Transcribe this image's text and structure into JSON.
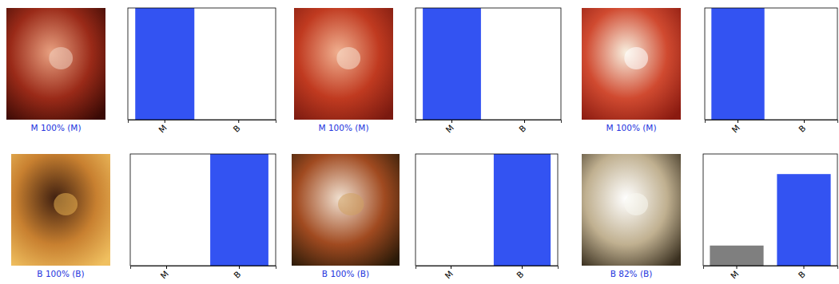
{
  "chart_data": [
    {
      "type": "bar",
      "title": "M 100% (M)",
      "categories": [
        "M",
        "B"
      ],
      "values": [
        100,
        0
      ],
      "colors": [
        "#3353f2",
        "#7f7f7f"
      ],
      "ylim": [
        0,
        100
      ],
      "tick_labels": "x"
    },
    {
      "type": "bar",
      "title": "M 100% (M)",
      "categories": [
        "M",
        "B"
      ],
      "values": [
        100,
        0
      ],
      "colors": [
        "#3353f2",
        "#7f7f7f"
      ],
      "ylim": [
        0,
        100
      ],
      "tick_labels": "x"
    },
    {
      "type": "bar",
      "title": "M 100% (M)",
      "categories": [
        "M",
        "B"
      ],
      "values": [
        100,
        0
      ],
      "colors": [
        "#3353f2",
        "#7f7f7f"
      ],
      "ylim": [
        0,
        100
      ],
      "tick_labels": "x"
    },
    {
      "type": "bar",
      "title": "B 100% (B)",
      "categories": [
        "M",
        "B"
      ],
      "values": [
        0,
        100
      ],
      "colors": [
        "#7f7f7f",
        "#3353f2"
      ],
      "ylim": [
        0,
        100
      ],
      "tick_labels": "x"
    },
    {
      "type": "bar",
      "title": "B 100% (B)",
      "categories": [
        "M",
        "B"
      ],
      "values": [
        0,
        100
      ],
      "colors": [
        "#7f7f7f",
        "#3353f2"
      ],
      "ylim": [
        0,
        100
      ],
      "tick_labels": "x"
    },
    {
      "type": "bar",
      "title": "B 82% (B)",
      "categories": [
        "M",
        "B"
      ],
      "values": [
        18,
        82
      ],
      "colors": [
        "#7f7f7f",
        "#3353f2"
      ],
      "ylim": [
        0,
        100
      ],
      "tick_labels": "x"
    }
  ]
}
